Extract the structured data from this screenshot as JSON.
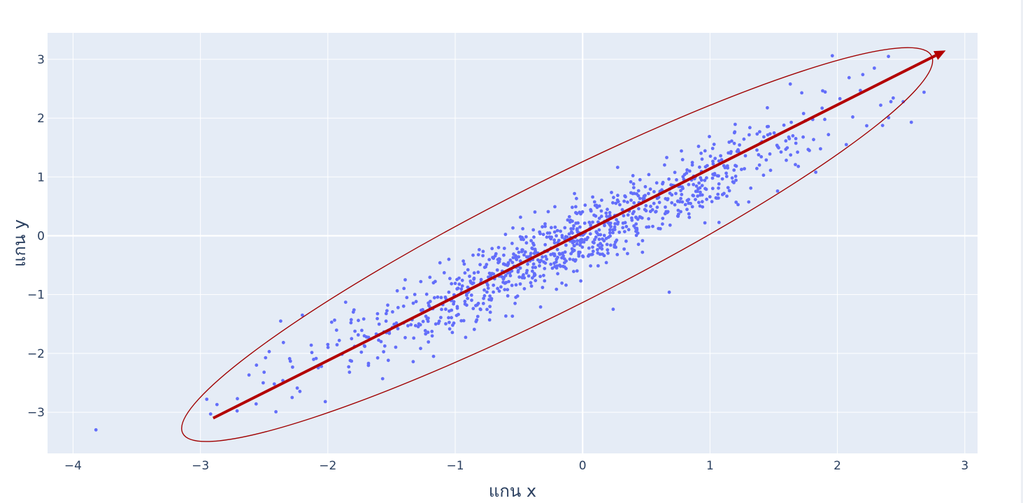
{
  "chart_data": {
    "type": "scatter",
    "title": "",
    "xlabel": "แกน x",
    "ylabel": "แกน y",
    "xlim": [
      -4.2,
      3.1
    ],
    "ylim": [
      -3.7,
      3.45
    ],
    "x_ticks": [
      -4,
      -3,
      -2,
      -1,
      0,
      1,
      2,
      3
    ],
    "y_ticks": [
      -3,
      -2,
      -1,
      0,
      1,
      2,
      3
    ],
    "x_tick_labels": [
      "−4",
      "−3",
      "−2",
      "−1",
      "0",
      "1",
      "2",
      "3"
    ],
    "y_tick_labels": [
      "−3",
      "−2",
      "−1",
      "0",
      "1",
      "2",
      "3"
    ],
    "grid": true,
    "legend": "none",
    "colors": {
      "plot_background": "#e5ecf6",
      "grid": "#ffffff",
      "points": "#636efa",
      "arrow": "#b30000",
      "ellipse": "#a00000"
    },
    "series": [
      {
        "points": [
          [
            -3.82,
            -3.3
          ],
          [
            -2.95,
            -2.78
          ],
          [
            -2.92,
            -3.03
          ],
          [
            -2.87,
            -2.87
          ],
          [
            -2.71,
            -2.77
          ],
          [
            -2.56,
            -2.2
          ],
          [
            -2.5,
            -2.32
          ],
          [
            -2.46,
            -1.97
          ],
          [
            -2.42,
            -2.52
          ],
          [
            -2.37,
            -1.45
          ],
          [
            -2.3,
            -2.09
          ],
          [
            -2.24,
            -2.59
          ],
          [
            -2.2,
            -1.35
          ],
          [
            -2.13,
            -1.86
          ],
          [
            -2.05,
            -2.22
          ],
          [
            -2.02,
            -2.82
          ],
          [
            -1.97,
            -1.47
          ],
          [
            -1.91,
            -1.78
          ],
          [
            -1.86,
            -1.13
          ],
          [
            -1.83,
            -2.32
          ],
          [
            -1.76,
            -1.44
          ],
          [
            -1.71,
            -1.88
          ],
          [
            -1.62,
            -1.67
          ],
          [
            -1.57,
            -2.43
          ],
          [
            -1.53,
            -1.18
          ],
          [
            -1.45,
            -1.58
          ],
          [
            -1.38,
            -1.05
          ],
          [
            -1.33,
            -2.14
          ],
          [
            -1.27,
            -0.78
          ],
          [
            -1.23,
            -1.37
          ],
          [
            -1.17,
            -2.05
          ],
          [
            -1.12,
            -0.46
          ],
          [
            -1.05,
            -0.96
          ],
          [
            -1.02,
            -1.52
          ],
          [
            -0.97,
            -0.72
          ],
          [
            -0.91,
            -1.18
          ],
          [
            -0.86,
            -0.33
          ],
          [
            -0.82,
            -0.62
          ],
          [
            -0.77,
            -1.02
          ],
          [
            -0.73,
            -1.43
          ],
          [
            -0.66,
            -0.2
          ],
          [
            -0.62,
            -0.48
          ],
          [
            -0.58,
            -0.78
          ],
          [
            -0.53,
            -1.15
          ],
          [
            -0.47,
            0.12
          ],
          [
            -0.43,
            -0.36
          ],
          [
            -0.38,
            -0.68
          ],
          [
            -0.33,
            -1.21
          ],
          [
            -0.27,
            0.41
          ],
          [
            -0.22,
            -0.12
          ],
          [
            -0.18,
            -0.5
          ],
          [
            -0.13,
            -0.84
          ],
          [
            -0.07,
            0.17
          ],
          [
            -0.03,
            -0.31
          ],
          [
            0.02,
            0.52
          ],
          [
            0.05,
            -0.21
          ],
          [
            0.09,
            0.35
          ],
          [
            0.13,
            -0.06
          ],
          [
            0.17,
            0.21
          ],
          [
            0.22,
            -0.16
          ],
          [
            0.24,
            -1.25
          ],
          [
            0.28,
            0.58
          ],
          [
            0.33,
            0.07
          ],
          [
            0.38,
            0.73
          ],
          [
            0.42,
            0.31
          ],
          [
            0.47,
            -0.28
          ],
          [
            0.52,
            1.04
          ],
          [
            0.56,
            0.55
          ],
          [
            0.61,
            0.12
          ],
          [
            0.66,
            1.33
          ],
          [
            0.68,
            -0.96
          ],
          [
            0.72,
            0.85
          ],
          [
            0.77,
            0.41
          ],
          [
            0.82,
            1.12
          ],
          [
            0.87,
            0.68
          ],
          [
            0.91,
            1.52
          ],
          [
            0.96,
            0.22
          ],
          [
            1.02,
            0.98
          ],
          [
            1.07,
            1.27
          ],
          [
            1.11,
            0.72
          ],
          [
            1.17,
            1.61
          ],
          [
            1.22,
            0.53
          ],
          [
            1.27,
            1.14
          ],
          [
            1.32,
            0.81
          ],
          [
            1.37,
            1.73
          ],
          [
            1.42,
            1.03
          ],
          [
            1.47,
            1.39
          ],
          [
            1.53,
            0.76
          ],
          [
            1.58,
            1.88
          ],
          [
            1.63,
            2.58
          ],
          [
            1.67,
            1.21
          ],
          [
            1.72,
            2.43
          ],
          [
            1.78,
            1.45
          ],
          [
            1.83,
            1.08
          ],
          [
            1.88,
            2.17
          ],
          [
            1.93,
            1.72
          ],
          [
            1.96,
            3.06
          ],
          [
            2.02,
            2.33
          ],
          [
            2.07,
            1.55
          ],
          [
            2.12,
            2.02
          ],
          [
            2.18,
            2.47
          ],
          [
            2.23,
            1.87
          ],
          [
            2.29,
            2.85
          ],
          [
            2.34,
            2.22
          ],
          [
            2.42,
            2.28
          ],
          [
            2.58,
            1.93
          ],
          [
            2.68,
            2.44
          ]
        ]
      }
    ],
    "principal_axis": {
      "from": [
        -2.9,
        -3.1
      ],
      "to": [
        2.85,
        3.15
      ]
    },
    "confidence_ellipse": {
      "center": [
        -0.2,
        -0.15
      ],
      "semi_major": 4.35,
      "semi_minor": 0.62,
      "angle_deg": 47.5
    }
  }
}
